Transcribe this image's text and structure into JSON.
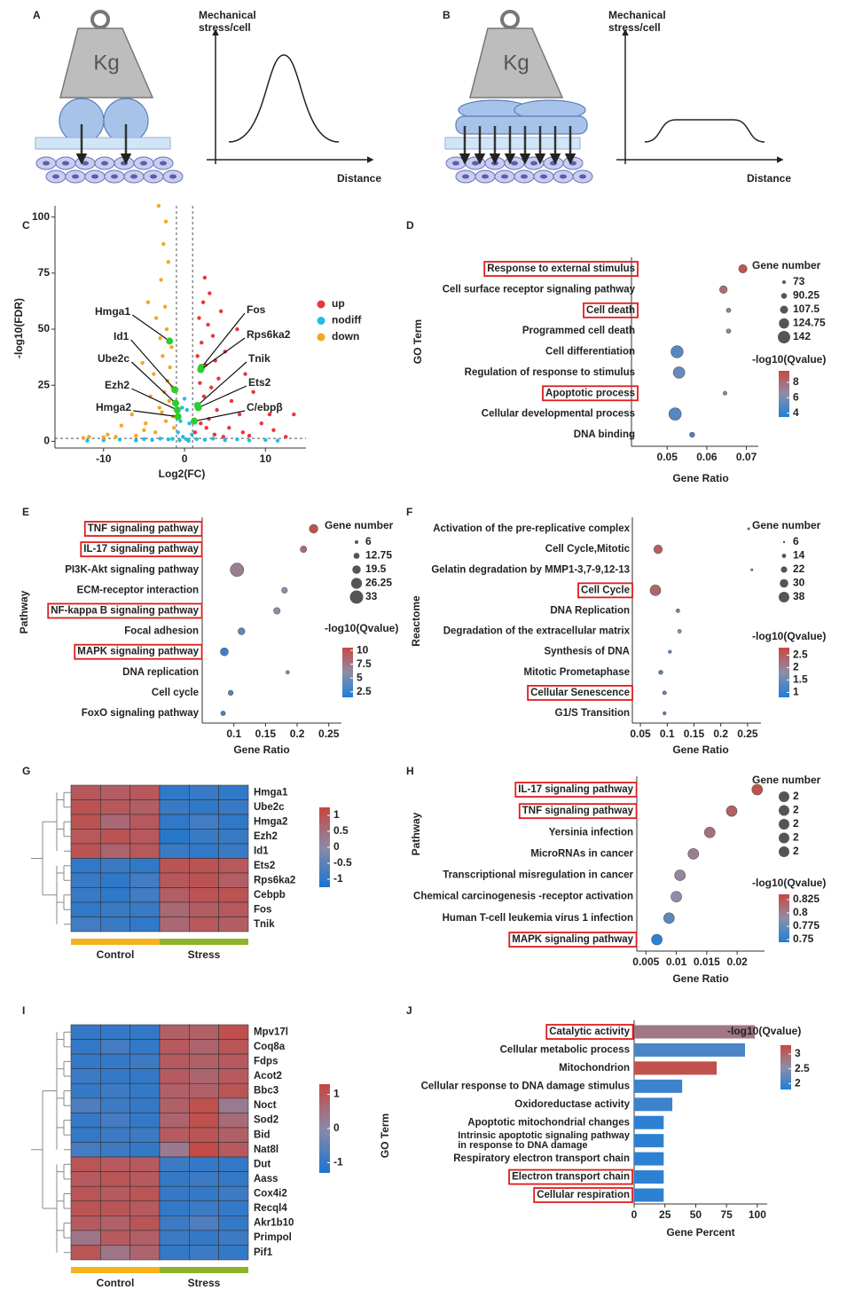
{
  "diagrams": [
    {
      "panel": "A",
      "weight": "Kg",
      "y_label": [
        "Mechanical",
        "stress/cell"
      ],
      "x_label": "Distance"
    },
    {
      "panel": "B",
      "weight": "Kg",
      "y_label": [
        "Mechanical",
        "stress/cell"
      ],
      "x_label": "Distance"
    }
  ],
  "chart_data": [
    {
      "type": "scatter",
      "panel": "C",
      "x_label": "Log2(FC)",
      "y_label": "-log10(FDR)",
      "xlim": [
        -16,
        15
      ],
      "ylim": [
        -3,
        105
      ],
      "xticks": [
        -10,
        0,
        10
      ],
      "yticks": [
        0,
        25,
        50,
        75,
        100
      ],
      "thresholds": {
        "x": [
          -1,
          1
        ],
        "y": 1.3
      },
      "series": [
        {
          "name": "up",
          "color": "#e8363c",
          "x": [
            2.5,
            3.1,
            2.3,
            4.5,
            1.8,
            2.9,
            6.5,
            3.5,
            2.1,
            5.0,
            1.6,
            3.8,
            2.6,
            7.5,
            4.2,
            1.9,
            3.3,
            8.5,
            2.4,
            5.8,
            1.5,
            4.0,
            6.8,
            10.5,
            13.5,
            3.0,
            9.5,
            2.0,
            5.5,
            11.0,
            7.2,
            3.7,
            12.5,
            8.0,
            4.8,
            1.3,
            2.7
          ],
          "values": [
            73,
            66,
            62,
            58,
            55,
            52,
            50,
            47,
            44,
            40,
            38,
            36,
            34,
            30,
            28,
            26,
            24,
            22,
            20,
            18,
            16,
            14,
            12,
            12,
            12,
            10,
            8,
            8,
            6,
            5,
            4,
            3,
            2,
            2.5,
            2,
            4,
            6
          ]
        },
        {
          "name": "nodiff",
          "color": "#1fbde8",
          "x": [
            -12,
            -10,
            -8,
            -6,
            -5,
            -4,
            -3,
            -2,
            -1.5,
            -0.8,
            -0.5,
            -0.3,
            0,
            0.3,
            0.6,
            0.9,
            -0.2,
            0.2,
            1.5,
            2.5,
            3.5,
            5,
            6.5,
            8,
            10,
            11.5,
            0.5,
            -0.6
          ],
          "values": [
            0.3,
            0.5,
            0.8,
            0.4,
            1,
            0.6,
            1.2,
            0.9,
            1.1,
            4,
            9,
            15,
            19,
            14,
            8,
            3,
            2,
            1,
            1,
            0.7,
            1.2,
            0.5,
            0.9,
            0.4,
            0.6,
            0.3,
            0.2,
            0.5
          ]
        },
        {
          "name": "down",
          "color": "#f5a623",
          "x": [
            -3.2,
            -2.3,
            -2.6,
            -2.0,
            -2.9,
            -4.5,
            -2.4,
            -3.5,
            -2.2,
            -3.0,
            -1.6,
            -2.7,
            -5.2,
            -1.8,
            -3.8,
            -2.1,
            -1.5,
            -2.5,
            -4.2,
            -1.9,
            -3.1,
            -6.5,
            -1.4,
            -2.3,
            -7.8,
            -5.0,
            -3.6,
            -9.5,
            -11.8,
            -8.5,
            -12.5,
            -6.0,
            -10.0,
            -4.8,
            -1.3,
            -2.8
          ],
          "values": [
            105,
            98,
            88,
            80,
            72,
            62,
            60,
            55,
            50,
            46,
            42,
            38,
            35,
            33,
            30,
            27,
            24,
            22,
            20,
            18,
            15,
            12,
            11,
            9,
            7,
            5,
            4,
            3,
            2,
            2,
            1.5,
            2.5,
            1.8,
            8,
            6,
            13
          ]
        }
      ],
      "annotation_color": "#2ecc2e",
      "annotations": [
        {
          "text": "Hmga1",
          "x": -1.85,
          "y": 44.7
        },
        {
          "text": "Id1",
          "x": -1.2,
          "y": 23
        },
        {
          "text": "Ube2c",
          "x": -1.1,
          "y": 17
        },
        {
          "text": "Ezh2",
          "x": -0.9,
          "y": 14
        },
        {
          "text": "Hmga2",
          "x": -0.8,
          "y": 11
        },
        {
          "text": "Fos",
          "x": 2.1,
          "y": 33
        },
        {
          "text": "Rps6ka2",
          "x": 2.0,
          "y": 32
        },
        {
          "text": "Tnik",
          "x": 1.6,
          "y": 16
        },
        {
          "text": "Ets2",
          "x": 1.7,
          "y": 15
        },
        {
          "text": "C/ebpβ",
          "x": 1.2,
          "y": 9
        }
      ]
    },
    {
      "type": "bubble",
      "panel": "D",
      "x_label": "Gene Ratio",
      "y_label": "GO Term",
      "categories": [
        "Response to external stimulus",
        "Cell surface receptor signaling pathway",
        "Cell death",
        "Programmed cell death",
        "Cell differentiation",
        "Regulation of response to stimulus",
        "Apoptotic process",
        "Cellular developmental process",
        "DNA binding"
      ],
      "values": [
        0.0691,
        0.0642,
        0.0655,
        0.0655,
        0.0525,
        0.053,
        0.0646,
        0.052,
        0.0563
      ],
      "sizes": [
        110,
        105,
        80,
        80,
        140,
        135,
        75,
        142,
        85
      ],
      "qvalues": [
        9,
        8,
        7,
        7,
        5,
        5.5,
        7,
        5,
        4.5
      ],
      "highlight": [
        0,
        2,
        6
      ],
      "xlim": [
        0.041,
        0.073
      ],
      "xticks": [
        0.05,
        0.06,
        0.07
      ],
      "size_title": "Gene number",
      "size_legend": [
        73,
        90.25,
        107.5,
        124.75,
        142
      ],
      "color_title": "-log10(Qvalue)",
      "color_lim": [
        3.5,
        9.5
      ],
      "color_ticks": [
        4,
        6,
        8
      ],
      "colors": [
        "#1f7fd8",
        "#8c8fa8",
        "#c9483f"
      ]
    },
    {
      "type": "bubble",
      "panel": "E",
      "x_label": "Gene Ratio",
      "y_label": "Pathway",
      "categories": [
        "TNF signaling pathway",
        "IL-17 signaling pathway",
        "PI3K-Akt signaling pathway",
        "ECM-receptor interaction",
        "NF-kappa B signaling pathway",
        "Focal adhesion",
        "MAPK signaling pathway",
        "DNA replication",
        "Cell cycle",
        "FoxO signaling pathway"
      ],
      "values": [
        0.226,
        0.21,
        0.105,
        0.18,
        0.168,
        0.112,
        0.085,
        0.185,
        0.095,
        0.083
      ],
      "sizes": [
        20,
        14,
        33,
        12,
        14,
        15,
        18,
        6,
        10,
        9
      ],
      "qvalues": [
        10,
        8.5,
        7,
        6,
        6,
        4,
        2.5,
        5.5,
        3.5,
        3
      ],
      "highlight": [
        0,
        1,
        4,
        6
      ],
      "xlim": [
        0.05,
        0.27
      ],
      "xticks": [
        0.1,
        0.15,
        0.2,
        0.25
      ],
      "size_title": "Gene number",
      "size_legend": [
        6,
        12.75,
        19.5,
        26.25,
        33
      ],
      "color_title": "-log10(Qvalue)",
      "color_lim": [
        1.5,
        10.5
      ],
      "color_ticks": [
        2.5,
        5,
        7.5,
        10
      ],
      "colors": [
        "#1f7fd8",
        "#8c8fa8",
        "#c9483f"
      ]
    },
    {
      "type": "bubble",
      "panel": "F",
      "x_label": "Gene Ratio",
      "y_label": "Reactome",
      "categories": [
        "Activation of the pre-replicative complex",
        "Cell Cycle,Mitotic",
        "Gelatin degradation by MMP1-3,7-9,12-13",
        "Cell Cycle",
        "DNA Replication",
        "Degradation of the extracellular matrix",
        "Synthesis of DNA",
        "Mitotic Prometaphase",
        "Cellular Senescence",
        "G1/S Transition"
      ],
      "values": [
        0.252,
        0.083,
        0.258,
        0.078,
        0.12,
        0.123,
        0.105,
        0.088,
        0.095,
        0.095
      ],
      "sizes": [
        6,
        30,
        6,
        38,
        12,
        12,
        10,
        14,
        12,
        10
      ],
      "qvalues": [
        2.6,
        2.5,
        2.3,
        2.4,
        2.2,
        1.8,
        1.2,
        1.3,
        1.2,
        1.1
      ],
      "highlight": [
        3,
        8
      ],
      "xlim": [
        0.035,
        0.275
      ],
      "xticks": [
        0.05,
        0.1,
        0.15,
        0.2,
        0.25
      ],
      "size_title": "Gene number",
      "size_legend": [
        6,
        14,
        22,
        30,
        38
      ],
      "color_title": "-log10(Qvalue)",
      "color_lim": [
        0.8,
        2.8
      ],
      "color_ticks": [
        1,
        1.5,
        2,
        2.5
      ],
      "colors": [
        "#1f7fd8",
        "#8c8fa8",
        "#c9483f"
      ]
    },
    {
      "type": "heatmap",
      "panel": "G",
      "categories": [
        "Hmga1",
        "Ube2c",
        "Hmga2",
        "Ezh2",
        "Id1",
        "Ets2",
        "Rps6ka2",
        "Cebpb",
        "Fos",
        "Tnik"
      ],
      "values": [
        [
          0.9,
          0.8,
          0.9,
          -1,
          -0.9,
          -1
        ],
        [
          1,
          0.9,
          0.8,
          -0.9,
          -1,
          -0.9
        ],
        [
          1,
          0.6,
          0.9,
          -1,
          -0.8,
          -1
        ],
        [
          0.9,
          1,
          0.9,
          -1.1,
          -0.9,
          -0.9
        ],
        [
          1,
          0.7,
          0.9,
          -0.9,
          -1,
          -0.9
        ],
        [
          -1,
          -0.9,
          -1,
          1,
          1,
          0.9
        ],
        [
          -0.9,
          -1,
          -0.8,
          0.9,
          1,
          0.8
        ],
        [
          -0.9,
          -1,
          -0.8,
          0.8,
          1,
          1
        ],
        [
          -1,
          -0.9,
          -0.9,
          0.6,
          0.8,
          0.9
        ],
        [
          -0.8,
          -0.9,
          -1,
          0.6,
          0.9,
          0.8
        ]
      ],
      "groups": [
        {
          "name": "Control",
          "color": "#f5b21b"
        },
        {
          "name": "Stress",
          "color": "#8db32a"
        }
      ],
      "column_group": [
        0,
        0,
        0,
        1,
        1,
        1
      ],
      "color_lim": [
        -1.25,
        1.25
      ],
      "color_ticks": [
        -1,
        -0.5,
        0,
        0.5,
        1
      ],
      "colors": [
        "#1a74d0",
        "#8a8aa8",
        "#c9453e"
      ]
    },
    {
      "type": "bubble",
      "panel": "H",
      "x_label": "Gene Ratio",
      "y_label": "Pathway",
      "categories": [
        "IL-17 signaling pathway",
        "TNF signaling pathway",
        "Yersinia infection",
        "MicroRNAs in cancer",
        "Transcriptional misregulation in cancer",
        "Chemical carcinogenesis -receptor activation",
        "Human T-cell leukemia virus 1 infection",
        "MAPK signaling pathway"
      ],
      "values": [
        0.0233,
        0.0191,
        0.0155,
        0.0128,
        0.0106,
        0.01,
        0.0088,
        0.0068
      ],
      "sizes": [
        2,
        2,
        2,
        2,
        2,
        2,
        2,
        2
      ],
      "qvalues": [
        0.83,
        0.82,
        0.81,
        0.8,
        0.795,
        0.79,
        0.77,
        0.75
      ],
      "highlight": [
        0,
        1,
        7
      ],
      "xlim": [
        0.0035,
        0.0245
      ],
      "xticks": [
        0.005,
        0.01,
        0.015,
        0.02
      ],
      "size_title": "Gene number",
      "size_legend": [
        2,
        2,
        2,
        2,
        2
      ],
      "color_title": "-log10(Qvalue)",
      "color_lim": [
        0.745,
        0.835
      ],
      "color_ticks": [
        0.75,
        0.775,
        0.8,
        0.825
      ],
      "colors": [
        "#1f7fd8",
        "#8c8fa8",
        "#c9483f"
      ]
    },
    {
      "type": "heatmap",
      "panel": "I",
      "categories": [
        "Mpv17l",
        "Coq8a",
        "Fdps",
        "Acot2",
        "Bbc3",
        "Noct",
        "Sod2",
        "Bid",
        "Nat8l",
        "Dut",
        "Aass",
        "Cox4i2",
        "Recql4",
        "Akr1b10",
        "Primpol",
        "Pif1"
      ],
      "values": [
        [
          -1,
          -1,
          -1,
          0.8,
          0.8,
          1.1
        ],
        [
          -1,
          -0.8,
          -1,
          0.9,
          0.7,
          1
        ],
        [
          -1,
          -1,
          -0.9,
          0.9,
          0.8,
          0.9
        ],
        [
          -0.9,
          -1,
          -1,
          0.9,
          0.7,
          0.9
        ],
        [
          -1,
          -0.9,
          -1,
          0.8,
          0.8,
          1
        ],
        [
          -0.7,
          -0.9,
          -1,
          0.8,
          1.1,
          0.3
        ],
        [
          -1,
          -0.8,
          -1,
          0.7,
          1.1,
          0.6
        ],
        [
          -1,
          -0.9,
          -0.9,
          0.9,
          1,
          0.8
        ],
        [
          -0.8,
          -0.9,
          -1,
          0.3,
          1.2,
          0.9
        ],
        [
          1,
          0.9,
          0.9,
          -0.9,
          -1,
          -1
        ],
        [
          0.9,
          1,
          0.9,
          -1,
          -0.9,
          -1
        ],
        [
          1,
          0.9,
          1,
          -1,
          -1,
          -0.9
        ],
        [
          1,
          1,
          0.9,
          -1,
          -0.9,
          -1
        ],
        [
          0.9,
          0.8,
          1,
          -0.9,
          -0.7,
          -1
        ],
        [
          0.4,
          0.9,
          0.8,
          -0.9,
          -1,
          -0.9
        ],
        [
          1,
          0.4,
          0.7,
          -1,
          -0.9,
          -1
        ]
      ],
      "groups": [
        {
          "name": "Control",
          "color": "#f5b21b"
        },
        {
          "name": "Stress",
          "color": "#8db32a"
        }
      ],
      "column_group": [
        0,
        0,
        0,
        1,
        1,
        1
      ],
      "color_lim": [
        -1.3,
        1.3
      ],
      "color_ticks": [
        -1,
        0,
        1
      ],
      "colors": [
        "#1a74d0",
        "#8a8aa8",
        "#c9453e"
      ]
    },
    {
      "type": "barh",
      "panel": "J",
      "x_label": "Gene Percent",
      "y_label": "GO Term",
      "categories": [
        "Catalytic activity",
        "Cellular metabolic process",
        "Mitochondrion",
        "Cellular response to DNA damage stimulus",
        "Oxidoreductase activity",
        "Apoptotic mitochondrial changes",
        "Intrinsic apoptotic signaling pathway\nin response to DNA damage",
        "Respiratory electron transport chain",
        "Electron transport chain",
        "Cellular respiration"
      ],
      "values": [
        98,
        90,
        67,
        39,
        31,
        24,
        24,
        24,
        24,
        24
      ],
      "qvalues": [
        2.8,
        2.1,
        3.2,
        2.0,
        2.0,
        1.9,
        1.9,
        1.9,
        1.9,
        1.9
      ],
      "highlight": [
        0,
        8,
        9
      ],
      "xlim": [
        0,
        108
      ],
      "xticks": [
        0,
        25,
        50,
        75,
        100
      ],
      "color_title": "-log10(Qvalue)",
      "color_lim": [
        1.8,
        3.3
      ],
      "color_ticks": [
        2,
        2.5,
        3
      ],
      "colors": [
        "#1f7fd8",
        "#8c8fa8",
        "#c9483f"
      ]
    }
  ]
}
